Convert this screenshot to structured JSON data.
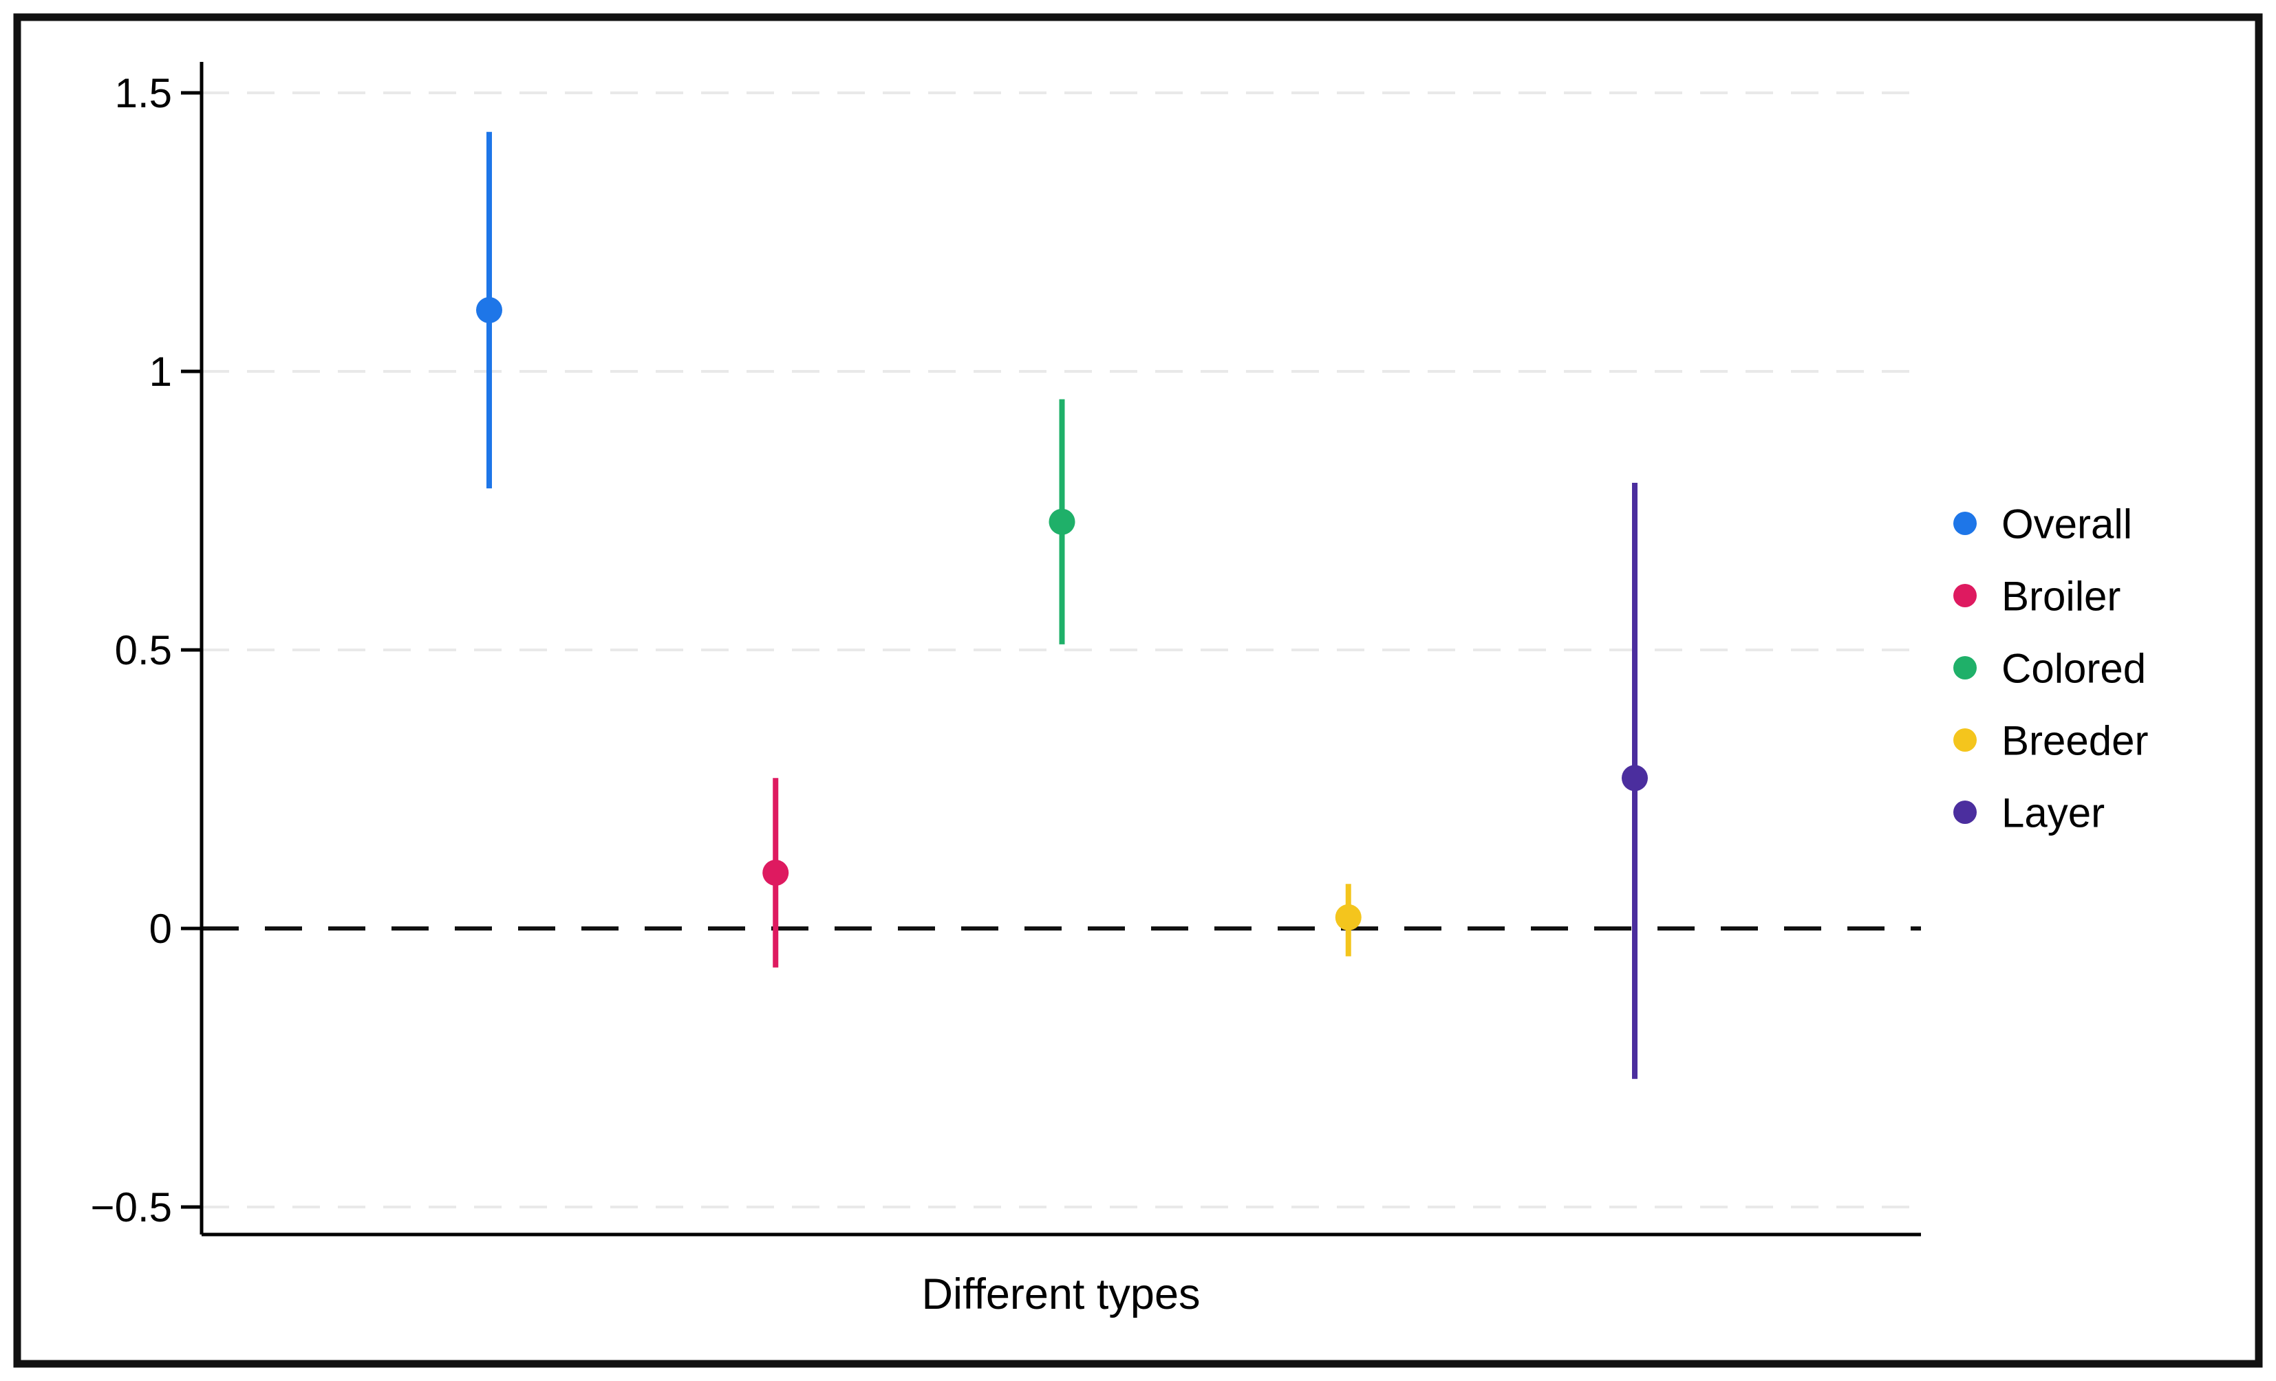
{
  "chart_data": {
    "type": "scatter",
    "subtype": "point-estimates-with-confidence-intervals",
    "title": "",
    "xlabel": "Different types",
    "ylabel": "",
    "categories": [
      "Overall",
      "Broiler",
      "Colored",
      "Breeder",
      "Layer"
    ],
    "series": [
      {
        "name": "Overall",
        "color": "#1E76E8",
        "value": 1.11,
        "ci_low": 0.79,
        "ci_high": 1.43
      },
      {
        "name": "Broiler",
        "color": "#DE1A60",
        "value": 0.1,
        "ci_low": -0.07,
        "ci_high": 0.27
      },
      {
        "name": "Colored",
        "color": "#1FB069",
        "value": 0.73,
        "ci_low": 0.51,
        "ci_high": 0.95
      },
      {
        "name": "Breeder",
        "color": "#F4C51D",
        "value": 0.02,
        "ci_low": -0.05,
        "ci_high": 0.08
      },
      {
        "name": "Layer",
        "color": "#4B2E9E",
        "value": 0.27,
        "ci_low": -0.27,
        "ci_high": 0.8
      }
    ],
    "yticks": [
      {
        "value": 1.5,
        "label": "1.5"
      },
      {
        "value": 1.0,
        "label": "1"
      },
      {
        "value": 0.5,
        "label": "0.5"
      },
      {
        "value": 0.0,
        "label": "0"
      },
      {
        "value": -0.5,
        "label": "−0.5"
      }
    ],
    "ylim": [
      -0.55,
      1.56
    ],
    "reference_line": {
      "value": 0,
      "style": "dashed"
    },
    "grid": true,
    "grid_style": "dashed",
    "legend_position": "right",
    "legend_marker": "dot",
    "colors": {
      "background": "#ffffff",
      "border": "#111111",
      "axis": "#000000",
      "grid": "#e9e9e9",
      "reference": "#111111"
    }
  }
}
